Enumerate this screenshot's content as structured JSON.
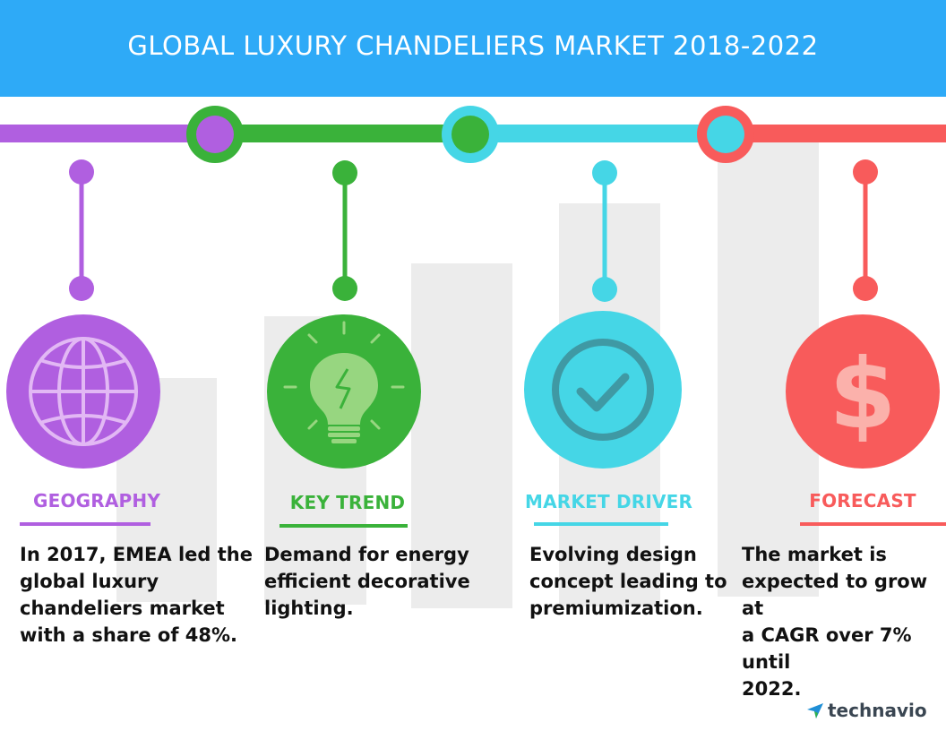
{
  "header": {
    "title": "GLOBAL LUXURY CHANDELIERS MARKET 2018-2022"
  },
  "sections": [
    {
      "label": "GEOGRAPHY",
      "text": "In 2017, EMEA led the\nglobal luxury\nchandeliers market\nwith a share of 48%.",
      "icon": "globe-icon"
    },
    {
      "label": "KEY TREND",
      "text": "Demand for energy\nefficient decorative\nlighting.",
      "icon": "light-bulb-icon"
    },
    {
      "label": "MARKET DRIVER",
      "text": "Evolving design\nconcept leading to\npremiumization.",
      "icon": "checkmark-icon"
    },
    {
      "label": "FORECAST",
      "text": "The market is\nexpected to grow at\na CAGR over 7% until\n2022.",
      "icon": "dollar-icon"
    }
  ],
  "brand": {
    "name": "technavio",
    "icon": "technavio-logo-icon"
  },
  "colors": {
    "header": "#2eaaf7",
    "purple": "#b05fe0",
    "green": "#3ab23a",
    "cyan": "#45d6e6",
    "red": "#f85b5b",
    "bars": "#ececec"
  }
}
